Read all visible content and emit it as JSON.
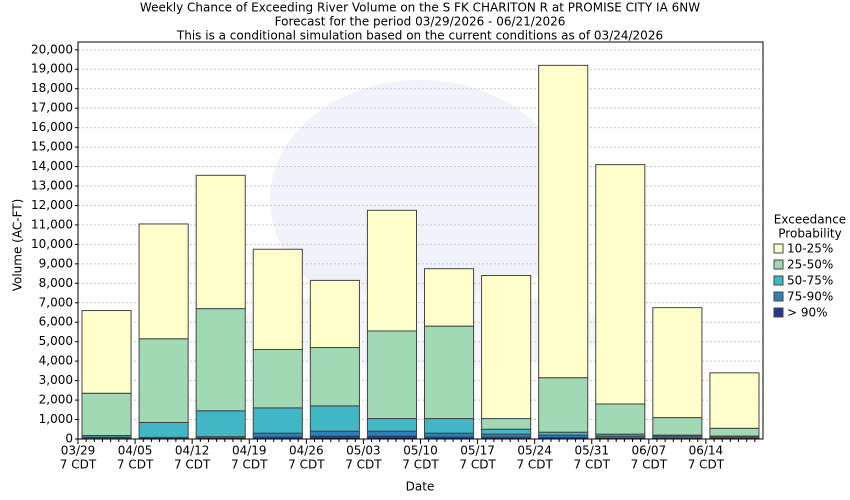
{
  "chart_data": {
    "type": "stacked_bar",
    "title": "Weekly Chance of Exceeding River Volume on the S FK CHARITON R at PROMISE CITY IA 6NW",
    "subtitle": [
      "Forecast for the period 03/29/2026 - 06/21/2026",
      "This is a conditional simulation based on the current conditions as of 03/24/2026"
    ],
    "x_label": "Date",
    "y_label": "Volume (AC-FT)",
    "categories": [
      "03/29",
      "04/05",
      "04/12",
      "04/19",
      "04/26",
      "05/03",
      "05/10",
      "05/17",
      "05/24",
      "05/31",
      "06/07",
      "06/14"
    ],
    "category_sublabels": [
      "7 CDT",
      "7 CDT",
      "7 CDT",
      "7 CDT",
      "7 CDT",
      "7 CDT",
      "7 CDT",
      "7 CDT",
      "7 CDT",
      "7 CDT",
      "7 CDT",
      "7 CDT"
    ],
    "legend_title": [
      "Exceedance",
      "Probability"
    ],
    "legend_position": "right",
    "grid": true,
    "ylim": [
      0,
      20400
    ],
    "yticks": [
      0,
      {
        "value": 1000,
        "label": "1,000"
      },
      {
        "value": 2000,
        "label": "2,000"
      },
      {
        "value": 3000,
        "label": "3,000"
      },
      {
        "value": 4000,
        "label": "4,000"
      },
      {
        "value": 5000,
        "label": "5,000"
      },
      {
        "value": 6000,
        "label": "6,000"
      },
      {
        "value": 7000,
        "label": "7,000"
      },
      {
        "value": 8000,
        "label": "8,000"
      },
      {
        "value": 9000,
        "label": "9,000"
      },
      {
        "value": 10000,
        "label": "10,000"
      },
      {
        "value": 11000,
        "label": "11,000"
      },
      {
        "value": 12000,
        "label": "12,000"
      },
      {
        "value": 13000,
        "label": "13,000"
      },
      {
        "value": 14000,
        "label": "14,000"
      },
      {
        "value": 15000,
        "label": "15,000"
      },
      {
        "value": 16000,
        "label": "16,000"
      },
      {
        "value": 17000,
        "label": "17,000"
      },
      {
        "value": 18000,
        "label": "18,000"
      },
      {
        "value": 19000,
        "label": "19,000"
      },
      {
        "value": 20000,
        "label": "20,000"
      }
    ],
    "series": [
      {
        "name": "> 90%",
        "color": "#253494",
        "values": [
          50,
          30,
          50,
          100,
          150,
          150,
          100,
          100,
          80,
          50,
          50,
          40
        ]
      },
      {
        "name": "75-90%",
        "color": "#2c7fb8",
        "values": [
          50,
          50,
          70,
          200,
          250,
          250,
          200,
          150,
          120,
          100,
          100,
          60
        ]
      },
      {
        "name": "50-75%",
        "color": "#41b6c4",
        "values": [
          80,
          770,
          1330,
          1300,
          1300,
          650,
          750,
          250,
          150,
          100,
          50,
          50
        ]
      },
      {
        "name": "25-50%",
        "color": "#a1d9b4",
        "values": [
          2170,
          4300,
          5250,
          3000,
          3000,
          4500,
          4750,
          550,
          2800,
          1550,
          900,
          400
        ]
      },
      {
        "name": "10-25%",
        "color": "#ffffcc",
        "values": [
          4250,
          5900,
          6850,
          5150,
          3450,
          6200,
          2950,
          7350,
          16050,
          12300,
          5650,
          2850
        ]
      }
    ]
  }
}
